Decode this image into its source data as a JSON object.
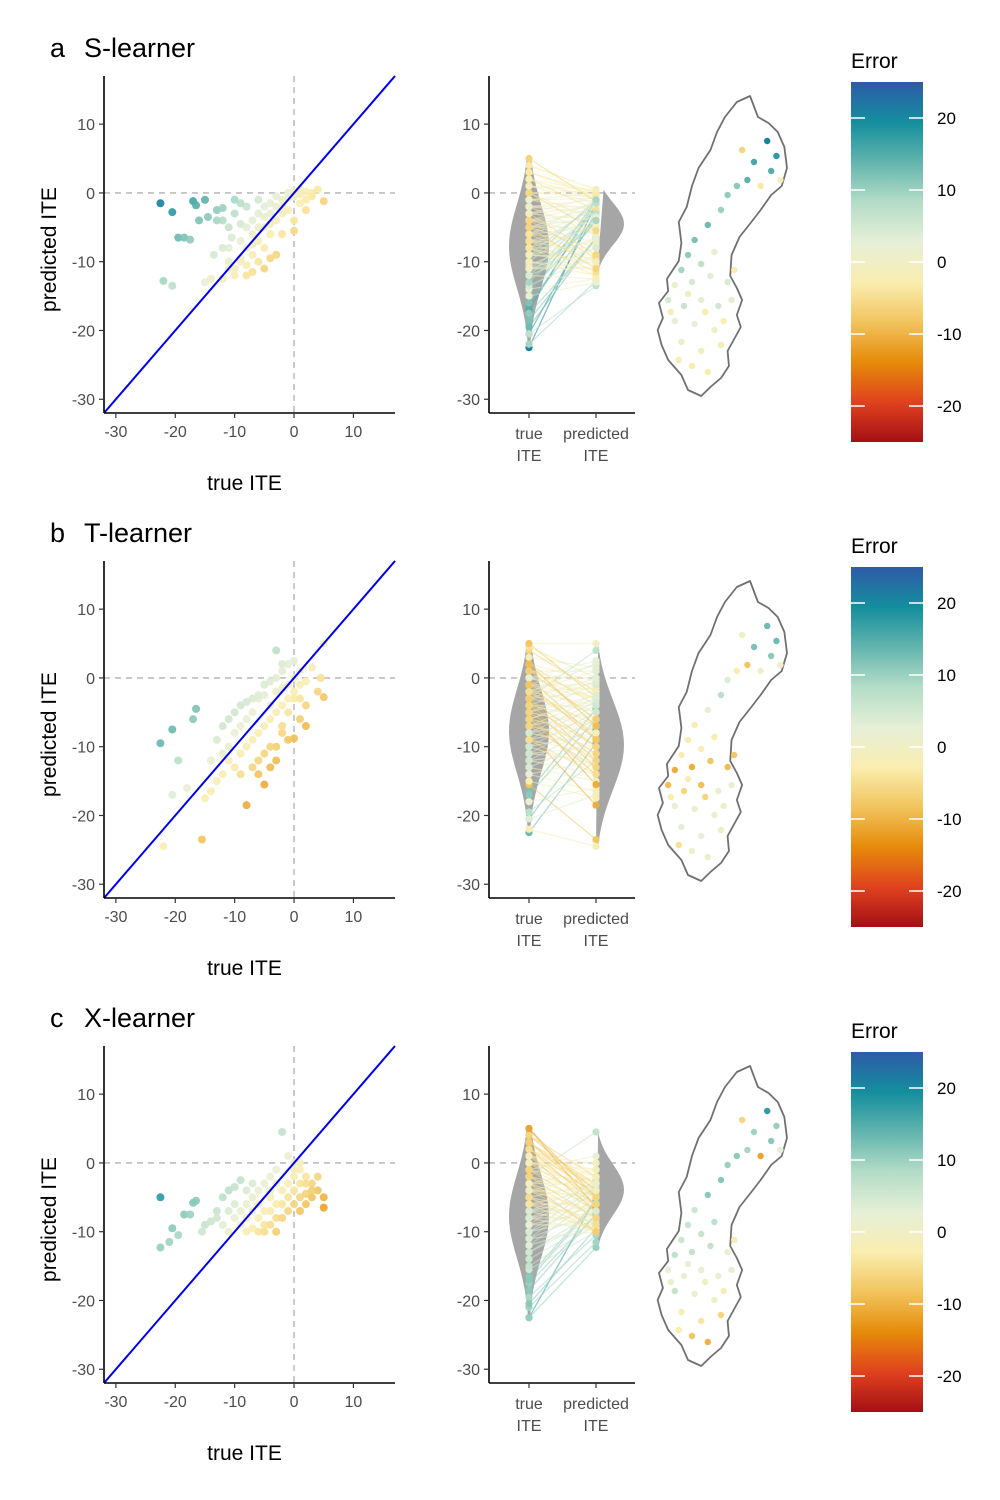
{
  "panels": [
    {
      "letter": "a",
      "method": "S-learner",
      "model": "s"
    },
    {
      "letter": "b",
      "method": "T-learner",
      "model": "t"
    },
    {
      "letter": "c",
      "method": "X-learner",
      "model": "x"
    }
  ],
  "chart_data": [
    {
      "type": "scatter",
      "panel": "a",
      "xlabel": "true ITE",
      "ylabel": "predicted ITE",
      "xlim": [
        -32,
        17
      ],
      "ylim": [
        -32,
        17
      ],
      "xticks": [
        -30,
        -20,
        -10,
        0,
        10
      ],
      "yticks": [
        -30,
        -20,
        -10,
        0,
        10
      ],
      "reference_line": "y = x",
      "points": [
        [
          -22.5,
          -1.5
        ],
        [
          -20.5,
          -2.8
        ],
        [
          -17,
          -1.2
        ],
        [
          -16.5,
          -1.8
        ],
        [
          -15,
          -1
        ],
        [
          -14.5,
          -3.5
        ],
        [
          -13,
          -2.5
        ],
        [
          -12,
          -2.2
        ],
        [
          -19.5,
          -6.5
        ],
        [
          -18.5,
          -6.5
        ],
        [
          -17.5,
          -6.8
        ],
        [
          -22,
          -12.8
        ],
        [
          -20.5,
          -13.5
        ],
        [
          -15,
          -13
        ],
        [
          -14,
          -12.5
        ],
        [
          -13.5,
          -9
        ],
        [
          -11,
          -8
        ],
        [
          -10.5,
          -6.5
        ],
        [
          -9,
          -4.5
        ],
        [
          -8,
          -2
        ],
        [
          -7,
          -4
        ],
        [
          -6,
          -1
        ],
        [
          -5,
          -2
        ],
        [
          -4,
          -1.5
        ],
        [
          -3,
          -0.5
        ],
        [
          -2,
          -2
        ],
        [
          -1,
          -0.8
        ],
        [
          0,
          -0.5
        ],
        [
          1,
          -0.2
        ],
        [
          2,
          -1
        ],
        [
          3,
          0
        ],
        [
          4,
          0.5
        ],
        [
          5,
          -1.2
        ],
        [
          -12,
          -12.5
        ],
        [
          -10,
          -11
        ],
        [
          -9,
          -9.5
        ],
        [
          -8,
          -10.5
        ],
        [
          -7,
          -9
        ],
        [
          -6,
          -7
        ],
        [
          -5,
          -8
        ],
        [
          -4,
          -6
        ],
        [
          -3,
          -9
        ],
        [
          -2,
          -6
        ],
        [
          0,
          -4
        ],
        [
          -6,
          -3
        ],
        [
          -5,
          -5
        ],
        [
          -4,
          -3
        ],
        [
          -3,
          -2
        ],
        [
          -2,
          -3
        ],
        [
          -1,
          -2.5
        ],
        [
          1,
          -1.5
        ],
        [
          2,
          -2.5
        ],
        [
          -11,
          -5
        ],
        [
          -10,
          -3
        ],
        [
          -9,
          -1.5
        ],
        [
          -8,
          -5
        ],
        [
          -7,
          -6
        ],
        [
          -6,
          -5
        ],
        [
          -5,
          -3.5
        ],
        [
          -4,
          -4.5
        ],
        [
          -3,
          -4
        ],
        [
          -2,
          -1
        ],
        [
          -1,
          0
        ],
        [
          0,
          0.3
        ],
        [
          1,
          0.5
        ],
        [
          2,
          0.2
        ],
        [
          3,
          -0.5
        ],
        [
          -16,
          -4
        ],
        [
          -12,
          -4
        ],
        [
          -10,
          -1
        ],
        [
          -9,
          -7
        ],
        [
          -8,
          -8
        ],
        [
          -7,
          -7.5
        ],
        [
          -13,
          -4
        ],
        [
          -11,
          -10
        ],
        [
          -8,
          -12
        ],
        [
          -6,
          -10
        ],
        [
          -4,
          -9.5
        ],
        [
          -12,
          -8
        ],
        [
          -11,
          -11
        ],
        [
          -10,
          -12
        ],
        [
          -9,
          -10
        ],
        [
          -7,
          -11.5
        ],
        [
          -5,
          -11
        ],
        [
          0,
          -5.5
        ]
      ]
    },
    {
      "type": "violin-paired",
      "panel": "a",
      "categories": [
        "true ITE",
        "predicted ITE"
      ],
      "ylim": [
        -32,
        17
      ],
      "yticks": [
        -30,
        -20,
        -10,
        0,
        10
      ],
      "true_range": [
        -22.5,
        5
      ],
      "predicted_range": [
        -13.5,
        0.5
      ]
    },
    {
      "type": "scatter",
      "panel": "b",
      "xlabel": "true ITE",
      "ylabel": "predicted ITE",
      "xlim": [
        -32,
        17
      ],
      "ylim": [
        -32,
        17
      ],
      "xticks": [
        -30,
        -20,
        -10,
        0,
        10
      ],
      "yticks": [
        -30,
        -20,
        -10,
        0,
        10
      ],
      "reference_line": "y = x",
      "points": [
        [
          -22.5,
          -9.5
        ],
        [
          -20.5,
          -7.5
        ],
        [
          -16.5,
          -4.5
        ],
        [
          -17,
          -6
        ],
        [
          -15.5,
          -23.5
        ],
        [
          -22,
          -24.5
        ],
        [
          -20.5,
          -17
        ],
        [
          -19.5,
          -12
        ],
        [
          -18,
          -16
        ],
        [
          -15,
          -17.5
        ],
        [
          -14,
          -16.5
        ],
        [
          -13,
          -15
        ],
        [
          -12,
          -14
        ],
        [
          -10,
          -13
        ],
        [
          -8,
          -18.5
        ],
        [
          -5,
          -15.5
        ],
        [
          -6,
          -14
        ],
        [
          -4,
          -13
        ],
        [
          -3,
          -12
        ],
        [
          -2,
          -8
        ],
        [
          0,
          -8.8
        ],
        [
          -11,
          -10
        ],
        [
          -10,
          -8
        ],
        [
          -9,
          -7
        ],
        [
          -8,
          -6
        ],
        [
          -7,
          -5
        ],
        [
          -6,
          -3
        ],
        [
          -5,
          -2.5
        ],
        [
          -4,
          -4
        ],
        [
          -3,
          -2
        ],
        [
          -2,
          -1.5
        ],
        [
          -1,
          -1
        ],
        [
          0,
          0
        ],
        [
          1,
          1
        ],
        [
          2,
          -0.5
        ],
        [
          3,
          1.5
        ],
        [
          4,
          -2
        ],
        [
          5,
          5
        ],
        [
          4.5,
          0
        ],
        [
          5,
          -2.8
        ],
        [
          -3,
          4
        ],
        [
          -2,
          2
        ],
        [
          0,
          -3
        ],
        [
          -1,
          -5
        ],
        [
          1,
          -3
        ],
        [
          2,
          -4
        ],
        [
          -12,
          -11
        ],
        [
          -11,
          -12
        ],
        [
          -9,
          -11
        ],
        [
          -8,
          -10
        ],
        [
          -7,
          -9
        ],
        [
          -6,
          -8
        ],
        [
          -5,
          -7
        ],
        [
          -4,
          -6
        ],
        [
          -3,
          -5
        ],
        [
          -2,
          -4
        ],
        [
          -1,
          -3
        ],
        [
          0,
          -2
        ],
        [
          1,
          -1
        ],
        [
          -10,
          -5
        ],
        [
          -9,
          -4
        ],
        [
          -8,
          -3.5
        ],
        [
          -7,
          -3
        ],
        [
          -6,
          -2.5
        ],
        [
          -5,
          -1
        ],
        [
          -4,
          -0.5
        ],
        [
          -3,
          0
        ],
        [
          -2,
          1
        ],
        [
          -1,
          2
        ],
        [
          0,
          2.5
        ],
        [
          -13,
          -9
        ],
        [
          -12,
          -7
        ],
        [
          -11,
          -6
        ],
        [
          -14,
          -12
        ],
        [
          -9,
          -14
        ],
        [
          -7,
          -13
        ],
        [
          -5,
          -11
        ],
        [
          -3,
          -10
        ],
        [
          -1,
          -9
        ],
        [
          -6,
          -12
        ],
        [
          -4,
          -10
        ],
        [
          -2,
          -7
        ],
        [
          1,
          -6
        ],
        [
          2,
          -7
        ]
      ]
    },
    {
      "type": "violin-paired",
      "panel": "b",
      "categories": [
        "true ITE",
        "predicted ITE"
      ],
      "ylim": [
        -32,
        17
      ],
      "yticks": [
        -30,
        -20,
        -10,
        0,
        10
      ],
      "true_range": [
        -22.5,
        5
      ],
      "predicted_range": [
        -24.5,
        5
      ]
    },
    {
      "type": "scatter",
      "panel": "c",
      "xlabel": "true ITE",
      "ylabel": "predicted ITE",
      "xlim": [
        -32,
        17
      ],
      "ylim": [
        -32,
        17
      ],
      "xticks": [
        -30,
        -20,
        -10,
        0,
        10
      ],
      "yticks": [
        -30,
        -20,
        -10,
        0,
        10
      ],
      "reference_line": "y = x",
      "points": [
        [
          -22.5,
          -5
        ],
        [
          -22.5,
          -12.3
        ],
        [
          -21,
          -11.5
        ],
        [
          -20.5,
          -9.5
        ],
        [
          -19.5,
          -10.5
        ],
        [
          -18.5,
          -7.5
        ],
        [
          -17.5,
          -7.5
        ],
        [
          -17,
          -5.8
        ],
        [
          -16.5,
          -5.5
        ],
        [
          -15.5,
          -10
        ],
        [
          -15,
          -9
        ],
        [
          -14,
          -8.5
        ],
        [
          -13,
          -7
        ],
        [
          -12,
          -5
        ],
        [
          -11,
          -4
        ],
        [
          -10,
          -3.5
        ],
        [
          -9,
          -2.5
        ],
        [
          -8,
          -6
        ],
        [
          -7,
          -5
        ],
        [
          -6,
          -4
        ],
        [
          -5,
          -3
        ],
        [
          -4,
          -2
        ],
        [
          -3,
          -1
        ],
        [
          -2,
          4.5
        ],
        [
          -1,
          1
        ],
        [
          0,
          0
        ],
        [
          1,
          -1
        ],
        [
          2,
          -2
        ],
        [
          3,
          -3
        ],
        [
          4,
          -4
        ],
        [
          5,
          -5
        ],
        [
          5,
          -6.5
        ],
        [
          4,
          -2
        ],
        [
          -12,
          -9
        ],
        [
          -11,
          -10
        ],
        [
          -10,
          -8
        ],
        [
          -9,
          -9
        ],
        [
          -8,
          -10
        ],
        [
          -7,
          -9.5
        ],
        [
          -6,
          -8
        ],
        [
          -5,
          -9
        ],
        [
          -4,
          -7
        ],
        [
          -3,
          -8
        ],
        [
          -2,
          -6
        ],
        [
          -1,
          -5
        ],
        [
          0,
          -4
        ],
        [
          1,
          -3
        ],
        [
          2,
          -4.5
        ],
        [
          3,
          -5
        ],
        [
          -6,
          -6
        ],
        [
          -5,
          -7
        ],
        [
          -4,
          -5
        ],
        [
          -3,
          -6
        ],
        [
          -2,
          -4
        ],
        [
          -1,
          -3
        ],
        [
          0,
          -2
        ],
        [
          1,
          -5
        ],
        [
          2,
          -6
        ],
        [
          3,
          -4
        ],
        [
          -13,
          -8
        ],
        [
          -10,
          -6
        ],
        [
          -9,
          -7
        ],
        [
          -8,
          -8
        ],
        [
          -7,
          -7
        ],
        [
          -6,
          -10
        ],
        [
          -5,
          -10
        ],
        [
          -4,
          -9
        ],
        [
          -3,
          -10
        ],
        [
          -2,
          -8
        ],
        [
          -1,
          -7
        ],
        [
          0,
          -6
        ],
        [
          1,
          -7
        ],
        [
          2,
          -3
        ],
        [
          -11,
          -7
        ],
        [
          -8,
          -4
        ],
        [
          -7,
          -3
        ],
        [
          -4,
          -4
        ],
        [
          -3,
          -3
        ],
        [
          0,
          -1
        ],
        [
          1,
          0
        ]
      ]
    },
    {
      "type": "violin-paired",
      "panel": "c",
      "categories": [
        "true ITE",
        "predicted ITE"
      ],
      "ylim": [
        -32,
        17
      ],
      "yticks": [
        -30,
        -20,
        -10,
        0,
        10
      ],
      "true_range": [
        -22.5,
        5
      ],
      "predicted_range": [
        -12.3,
        4.5
      ]
    }
  ],
  "legend": {
    "title": "Error",
    "range": [
      -25,
      25
    ],
    "ticks": [
      20,
      10,
      0,
      -10,
      -20
    ],
    "colors": [
      "#a50f15",
      "#e0421e",
      "#e68b0a",
      "#f2c45d",
      "#faeeb0",
      "#e6efd7",
      "#b3dcc7",
      "#62b4ad",
      "#148e9e",
      "#2e5ba8"
    ]
  },
  "labels": {
    "x_true": "true",
    "x_pred": "predicted",
    "x_ite": "ITE"
  }
}
